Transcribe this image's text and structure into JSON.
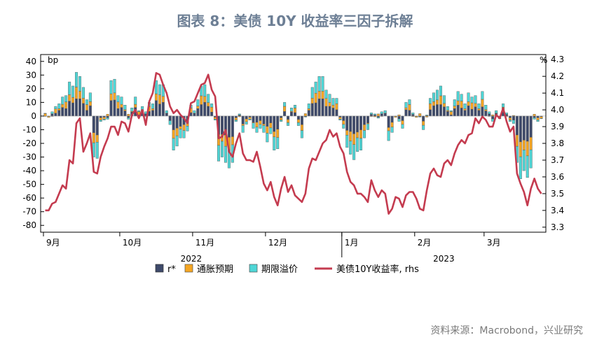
{
  "title": "图表 8：美债 10Y 收益率三因子拆解",
  "source": "资料来源：Macrobond，兴业研究",
  "colors": {
    "r_star": "#3e4a6b",
    "inflation": "#f5a623",
    "term": "#4fd6d6",
    "yield": "#c43b4f",
    "title": "#6d7f95"
  },
  "chart_data": {
    "type": "bar+line",
    "left_axis": {
      "label": "bp",
      "ylim": [
        -85,
        45
      ],
      "ticks": [
        40,
        30,
        20,
        10,
        0,
        -10,
        -20,
        -30,
        -40,
        -50,
        -60,
        -70,
        -80
      ]
    },
    "right_axis": {
      "label": "%",
      "ylim": [
        3.27,
        4.33
      ],
      "ticks": [
        "4.3",
        "4.2",
        "4.1",
        "4.0",
        "3.9",
        "3.8",
        "3.7",
        "3.6",
        "3.5",
        "3.4",
        "3.3"
      ]
    },
    "x_month_labels": [
      "9月",
      "10月",
      "11月",
      "12月",
      "1月",
      "2月",
      "3月"
    ],
    "x_year_labels": [
      "2022",
      "2023"
    ],
    "legend": [
      "r*",
      "通胀预期",
      "期限溢价",
      "美债10Y收益率, rhs"
    ],
    "series_names": [
      "r*",
      "通胀预期",
      "期限溢价",
      "美债10Y收益率, rhs"
    ],
    "n_days": 144,
    "month_start_index": [
      0,
      22,
      43,
      64,
      86,
      107,
      127
    ],
    "year_boundary_index": 85,
    "yield_pct": [
      3.4,
      3.4,
      3.44,
      3.45,
      3.5,
      3.55,
      3.53,
      3.7,
      3.68,
      3.92,
      3.95,
      3.75,
      3.8,
      3.86,
      3.63,
      3.62,
      3.72,
      3.78,
      3.83,
      3.9,
      3.9,
      3.85,
      3.93,
      3.92,
      3.87,
      3.97,
      4.0,
      3.95,
      4.0,
      3.91,
      4.05,
      4.1,
      4.22,
      4.21,
      4.15,
      4.1,
      4.02,
      3.98,
      4.0,
      3.97,
      3.95,
      3.92,
      4.04,
      4.05,
      4.1,
      4.15,
      4.16,
      4.21,
      4.12,
      4.08,
      3.83,
      3.84,
      3.88,
      3.75,
      3.72,
      3.8,
      3.86,
      3.74,
      3.7,
      3.7,
      3.69,
      3.75,
      3.66,
      3.56,
      3.52,
      3.57,
      3.48,
      3.43,
      3.53,
      3.6,
      3.51,
      3.55,
      3.49,
      3.47,
      3.45,
      3.5,
      3.65,
      3.71,
      3.7,
      3.75,
      3.8,
      3.82,
      3.88,
      3.84,
      3.86,
      3.78,
      3.74,
      3.63,
      3.57,
      3.55,
      3.5,
      3.5,
      3.48,
      3.45,
      3.58,
      3.52,
      3.48,
      3.52,
      3.5,
      3.38,
      3.41,
      3.48,
      3.47,
      3.42,
      3.49,
      3.51,
      3.51,
      3.47,
      3.41,
      3.4,
      3.52,
      3.62,
      3.65,
      3.61,
      3.6,
      3.68,
      3.7,
      3.67,
      3.74,
      3.79,
      3.82,
      3.8,
      3.85,
      3.86,
      3.95,
      3.92,
      3.96,
      3.94,
      3.9,
      3.9,
      3.97,
      3.95,
      4.01,
      3.93,
      3.87,
      3.9,
      3.62,
      3.56,
      3.51,
      3.43,
      3.53,
      3.59,
      3.53,
      3.5
    ]
  }
}
